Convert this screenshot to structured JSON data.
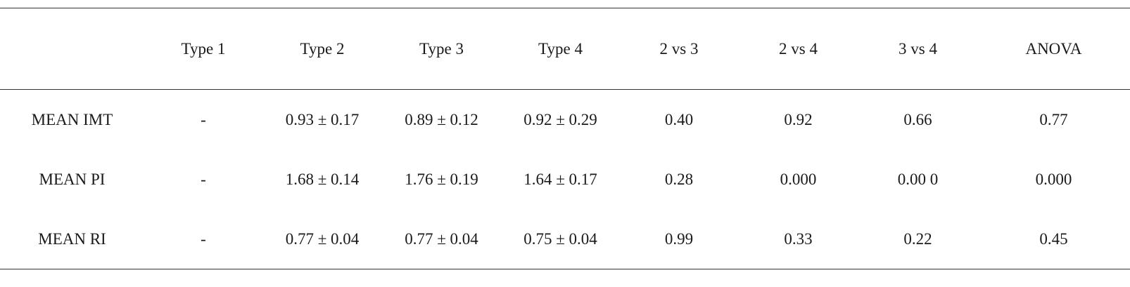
{
  "table": {
    "columns": [
      "",
      "Type 1",
      "Type 2",
      "Type 3",
      "Type 4",
      "2 vs 3",
      "2 vs 4",
      "3 vs 4",
      "ANOVA"
    ],
    "rows": [
      [
        "MEAN IMT",
        "-",
        "0.93 ± 0.17",
        "0.89 ± 0.12",
        "0.92 ± 0.29",
        "0.40",
        "0.92",
        "0.66",
        "0.77"
      ],
      [
        "MEAN PI",
        "-",
        "1.68 ± 0.14",
        "1.76 ± 0.19",
        "1.64 ± 0.17",
        "0.28",
        "0.000",
        "0.00 0",
        "0.000"
      ],
      [
        "MEAN RI",
        "-",
        "0.77 ± 0.04",
        "0.77 ± 0.04",
        "0.75 ± 0.04",
        "0.99",
        "0.33",
        "0.22",
        "0.45"
      ]
    ]
  }
}
